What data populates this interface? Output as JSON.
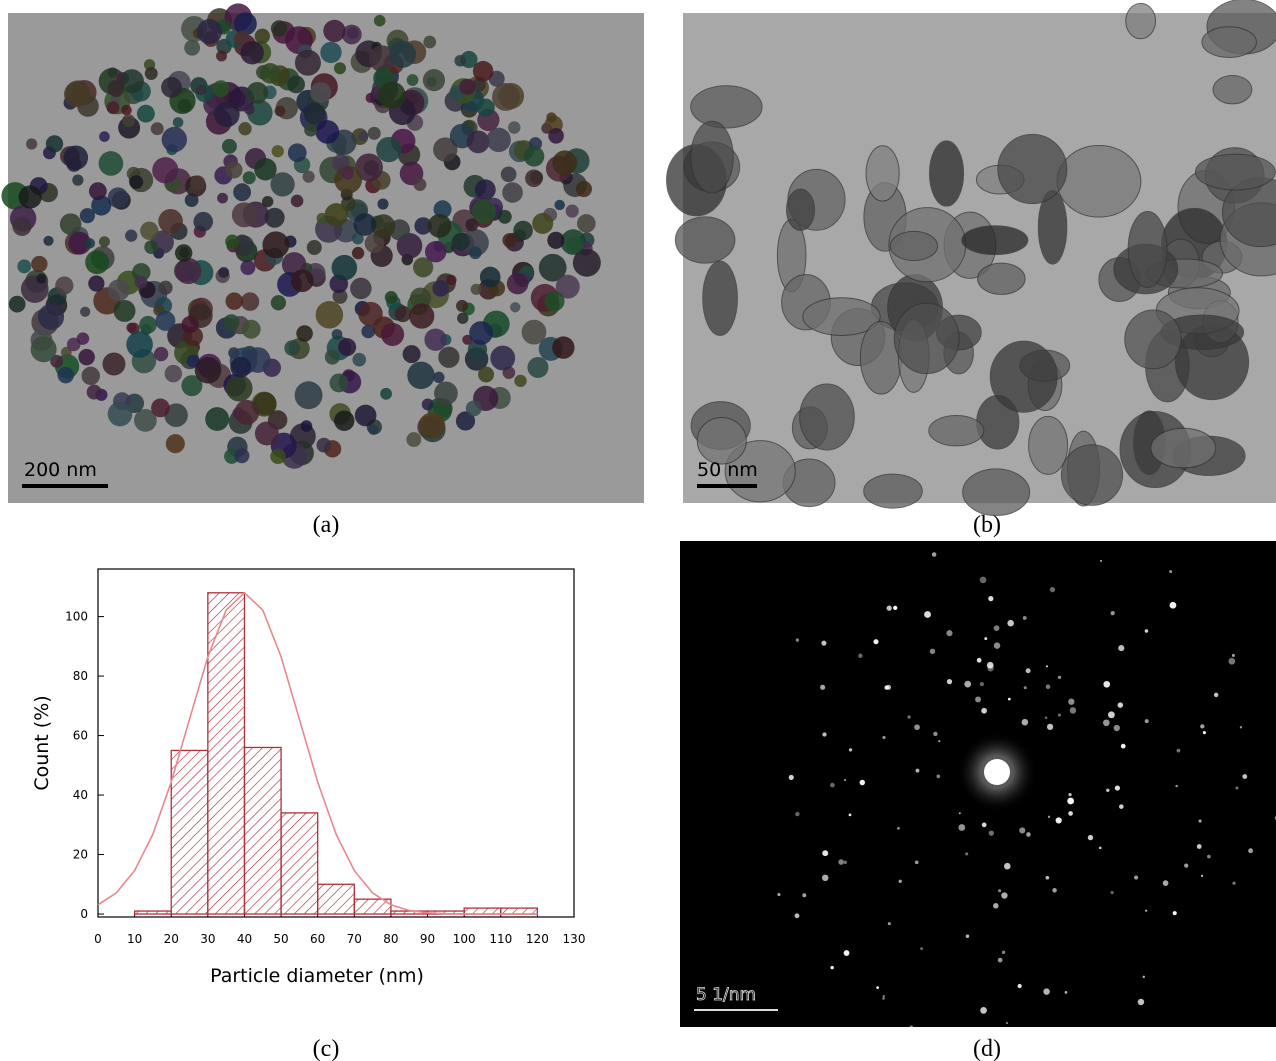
{
  "panels": [
    {
      "label": "(a)",
      "scale_bar": "200 nm"
    },
    {
      "label": "(b)",
      "scale_bar": "50 nm"
    },
    {
      "label": "(c)"
    },
    {
      "label": "(d)",
      "scale_bar": "5 1/nm"
    }
  ],
  "chart_data": {
    "type": "histogram",
    "x_label": "Particle diameter (nm)",
    "y_label": "Count (%)",
    "bins": [
      10,
      20,
      30,
      40,
      50,
      60,
      70,
      80,
      90,
      100,
      110,
      120
    ],
    "values": [
      1,
      55,
      108,
      56,
      34,
      10,
      5,
      1,
      1,
      2,
      2
    ],
    "color": "#b0303a",
    "fit": {
      "color": "#e8888c",
      "x": [
        0,
        5,
        10,
        15,
        20,
        25,
        30,
        35,
        40,
        45,
        50,
        55,
        60,
        65,
        70,
        75,
        80,
        85,
        90,
        95,
        100,
        110,
        120
      ],
      "values": [
        3.1,
        7.1,
        14.6,
        26.9,
        44.4,
        65.5,
        86.5,
        102.2,
        108,
        102.2,
        86.5,
        65.5,
        44.4,
        26.9,
        14.6,
        7.1,
        3.1,
        1.2,
        0.4,
        0.1,
        0,
        0,
        0
      ]
    },
    "xlim": [
      0,
      130
    ],
    "ylim": [
      -1,
      116
    ],
    "xticks": [
      0,
      10,
      20,
      30,
      40,
      50,
      60,
      70,
      80,
      90,
      100,
      110,
      120,
      130
    ],
    "yticks": [
      0,
      20,
      40,
      60,
      80,
      100
    ]
  }
}
